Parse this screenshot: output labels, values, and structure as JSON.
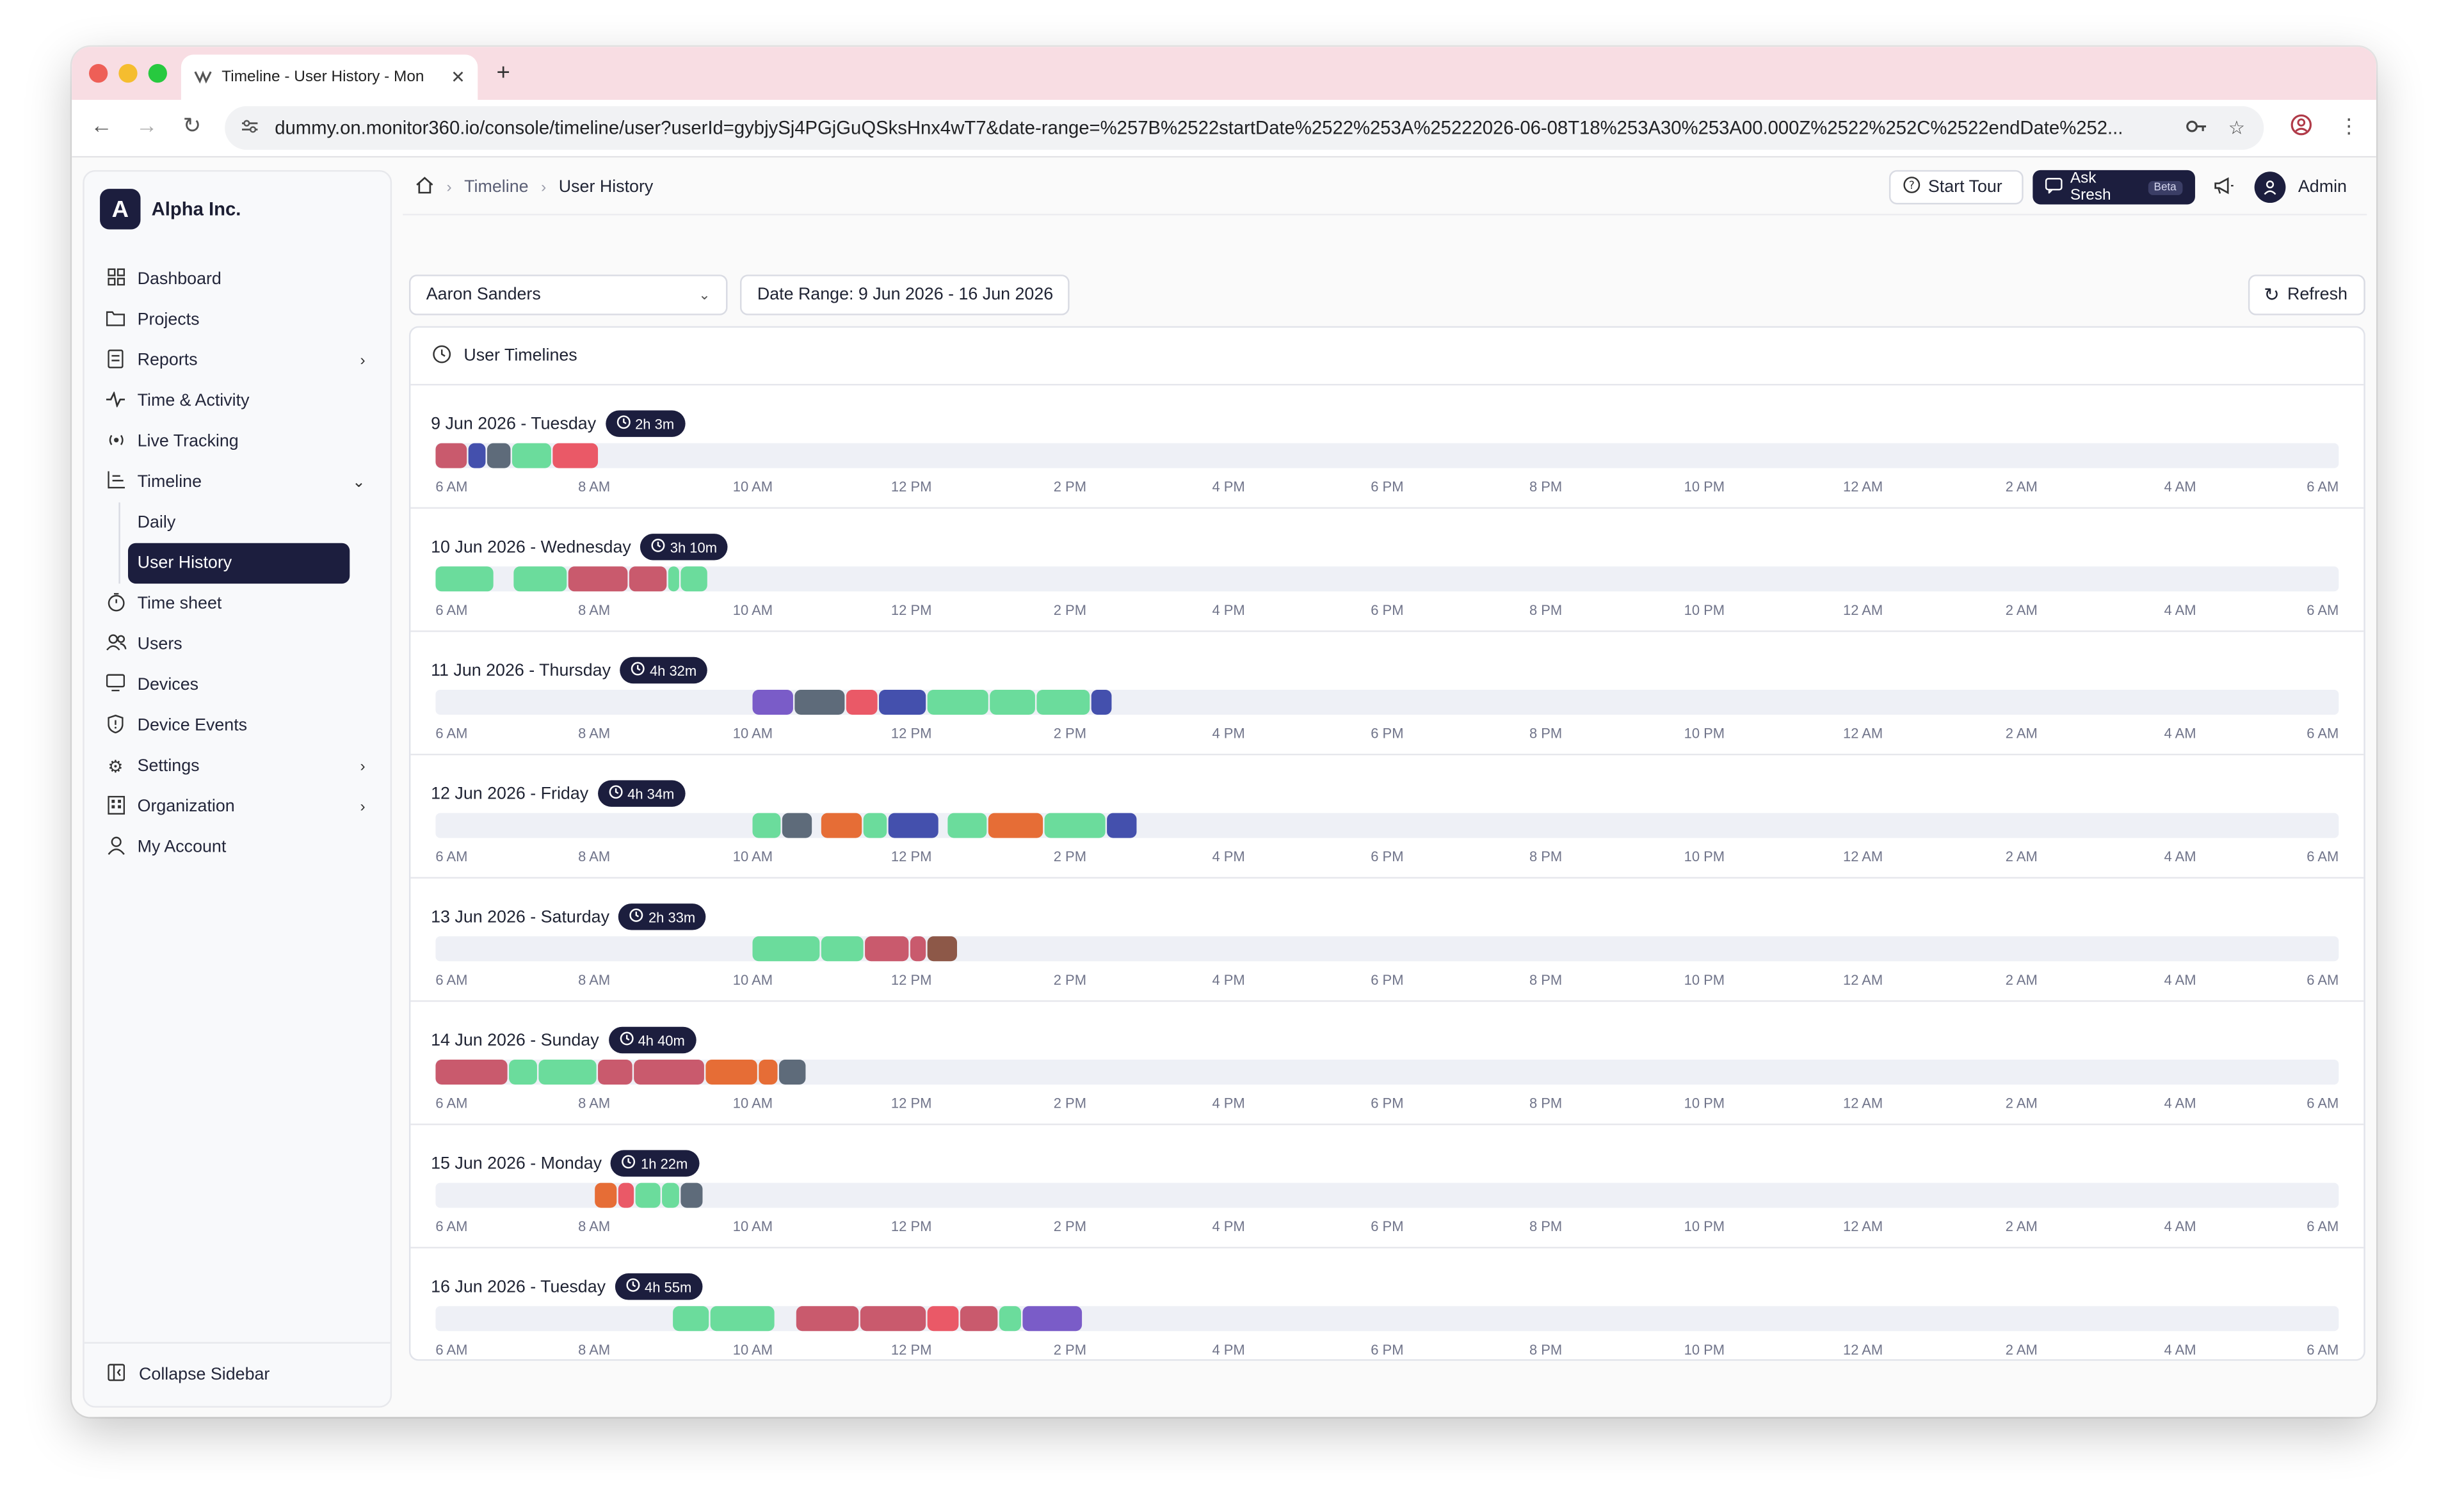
{
  "browser": {
    "tab_title": "Timeline - User History - Mon",
    "tab_close": "✕",
    "new_tab": "+",
    "url": "dummy.on.monitor360.io/console/timeline/user?userId=gybjySj4PGjGuQSksHnx4wT7&date-range=%257B%2522startDate%2522%253A%25222026-06-08T18%253A30%253A00.000Z%2522%252C%2522endDate%252..."
  },
  "sidebar": {
    "org_initial": "A",
    "org_name": "Alpha Inc.",
    "items": [
      {
        "label": "Dashboard",
        "icon": "dashboard-icon"
      },
      {
        "label": "Projects",
        "icon": "projects-icon"
      },
      {
        "label": "Reports",
        "icon": "reports-icon",
        "chevron": "›"
      },
      {
        "label": "Time & Activity",
        "icon": "activity-icon"
      },
      {
        "label": "Live Tracking",
        "icon": "live-tracking-icon"
      },
      {
        "label": "Timeline",
        "icon": "timeline-icon",
        "chevron": "⌄"
      },
      {
        "label": "Time sheet",
        "icon": "timesheet-icon"
      },
      {
        "label": "Users",
        "icon": "users-icon"
      },
      {
        "label": "Devices",
        "icon": "devices-icon"
      },
      {
        "label": "Device Events",
        "icon": "shield-icon"
      },
      {
        "label": "Settings",
        "icon": "gear-icon",
        "chevron": "›"
      },
      {
        "label": "Organization",
        "icon": "organization-icon",
        "chevron": "›"
      },
      {
        "label": "My Account",
        "icon": "user-icon"
      }
    ],
    "timeline_sub": [
      {
        "label": "Daily",
        "active": false
      },
      {
        "label": "User History",
        "active": true
      }
    ],
    "collapse_label": "Collapse Sidebar"
  },
  "header": {
    "breadcrumbs": [
      "Timeline",
      "User History"
    ],
    "start_tour": "Start Tour",
    "ask_sresh": "Ask Sresh",
    "beta": "Beta",
    "user_name": "Admin"
  },
  "filters": {
    "user_selected": "Aaron Sanders",
    "date_range": "Date Range: 9 Jun 2026 - 16 Jun 2026",
    "refresh": "Refresh"
  },
  "panel": {
    "title": "User Timelines"
  },
  "colors": {
    "green": "#6bdc9c",
    "rose": "#c95a6d",
    "red": "#ea5967",
    "indigo": "#4450ad",
    "slate": "#5e6b7a",
    "purple": "#7a5cc8",
    "orange": "#e66d36",
    "brown": "#8d5848",
    "navy": "#1c1e3e"
  },
  "timeline": {
    "range_start_hour": 6,
    "range_hours": 24,
    "tick_labels": [
      "6 AM",
      "8 AM",
      "10 AM",
      "12 PM",
      "2 PM",
      "4 PM",
      "6 PM",
      "8 PM",
      "10 PM",
      "12 AM",
      "2 AM",
      "4 AM",
      "6 AM"
    ],
    "days": [
      {
        "date": "9 Jun 2026 - Tuesday",
        "duration": "2h 3m",
        "segments": [
          {
            "start": 6.0,
            "end": 6.42,
            "color": "rose"
          },
          {
            "start": 6.42,
            "end": 6.65,
            "color": "indigo"
          },
          {
            "start": 6.65,
            "end": 6.97,
            "color": "slate"
          },
          {
            "start": 6.97,
            "end": 7.47,
            "color": "green"
          },
          {
            "start": 7.47,
            "end": 8.07,
            "color": "red"
          }
        ]
      },
      {
        "date": "10 Jun 2026 - Wednesday",
        "duration": "3h 10m",
        "segments": [
          {
            "start": 6.0,
            "end": 6.75,
            "color": "green"
          },
          {
            "start": 6.98,
            "end": 7.67,
            "color": "green"
          },
          {
            "start": 7.67,
            "end": 8.45,
            "color": "rose"
          },
          {
            "start": 8.45,
            "end": 8.93,
            "color": "rose"
          },
          {
            "start": 8.93,
            "end": 9.1,
            "color": "green"
          },
          {
            "start": 9.1,
            "end": 9.45,
            "color": "green"
          }
        ]
      },
      {
        "date": "11 Jun 2026 - Thursday",
        "duration": "4h 32m",
        "segments": [
          {
            "start": 10.0,
            "end": 10.52,
            "color": "purple"
          },
          {
            "start": 10.52,
            "end": 11.17,
            "color": "slate"
          },
          {
            "start": 11.17,
            "end": 11.6,
            "color": "red"
          },
          {
            "start": 11.6,
            "end": 12.2,
            "color": "indigo"
          },
          {
            "start": 12.2,
            "end": 12.98,
            "color": "green"
          },
          {
            "start": 12.98,
            "end": 13.58,
            "color": "green"
          },
          {
            "start": 13.58,
            "end": 14.27,
            "color": "green"
          },
          {
            "start": 14.27,
            "end": 14.55,
            "color": "indigo"
          }
        ]
      },
      {
        "date": "12 Jun 2026 - Friday",
        "duration": "4h 34m",
        "segments": [
          {
            "start": 10.0,
            "end": 10.37,
            "color": "green"
          },
          {
            "start": 10.37,
            "end": 10.77,
            "color": "slate"
          },
          {
            "start": 10.87,
            "end": 11.4,
            "color": "orange"
          },
          {
            "start": 11.4,
            "end": 11.7,
            "color": "green"
          },
          {
            "start": 11.7,
            "end": 12.35,
            "color": "indigo"
          },
          {
            "start": 12.45,
            "end": 12.97,
            "color": "green"
          },
          {
            "start": 12.97,
            "end": 13.68,
            "color": "orange"
          },
          {
            "start": 13.68,
            "end": 14.47,
            "color": "green"
          },
          {
            "start": 14.47,
            "end": 14.85,
            "color": "indigo"
          }
        ]
      },
      {
        "date": "13 Jun 2026 - Saturday",
        "duration": "2h 33m",
        "segments": [
          {
            "start": 10.0,
            "end": 10.87,
            "color": "green"
          },
          {
            "start": 10.87,
            "end": 11.42,
            "color": "green"
          },
          {
            "start": 11.42,
            "end": 11.98,
            "color": "rose"
          },
          {
            "start": 11.98,
            "end": 12.2,
            "color": "rose"
          },
          {
            "start": 12.2,
            "end": 12.6,
            "color": "brown"
          }
        ]
      },
      {
        "date": "14 Jun 2026 - Sunday",
        "duration": "4h 40m",
        "segments": [
          {
            "start": 6.0,
            "end": 6.92,
            "color": "rose"
          },
          {
            "start": 6.92,
            "end": 7.3,
            "color": "green"
          },
          {
            "start": 7.3,
            "end": 8.05,
            "color": "green"
          },
          {
            "start": 8.05,
            "end": 8.5,
            "color": "rose"
          },
          {
            "start": 8.5,
            "end": 9.4,
            "color": "rose"
          },
          {
            "start": 9.4,
            "end": 10.07,
            "color": "orange"
          },
          {
            "start": 10.07,
            "end": 10.33,
            "color": "orange"
          },
          {
            "start": 10.33,
            "end": 10.68,
            "color": "slate"
          }
        ]
      },
      {
        "date": "15 Jun 2026 - Monday",
        "duration": "1h 22m",
        "segments": [
          {
            "start": 8.0,
            "end": 8.3,
            "color": "orange"
          },
          {
            "start": 8.3,
            "end": 8.52,
            "color": "red"
          },
          {
            "start": 8.52,
            "end": 8.85,
            "color": "green"
          },
          {
            "start": 8.85,
            "end": 9.1,
            "color": "green"
          },
          {
            "start": 9.1,
            "end": 9.38,
            "color": "slate"
          }
        ]
      },
      {
        "date": "16 Jun 2026 - Tuesday",
        "duration": "4h 55m",
        "segments": [
          {
            "start": 9.0,
            "end": 9.47,
            "color": "green"
          },
          {
            "start": 9.47,
            "end": 10.3,
            "color": "green"
          },
          {
            "start": 10.55,
            "end": 11.35,
            "color": "rose"
          },
          {
            "start": 11.35,
            "end": 12.2,
            "color": "rose"
          },
          {
            "start": 12.2,
            "end": 12.62,
            "color": "red"
          },
          {
            "start": 12.62,
            "end": 13.1,
            "color": "rose"
          },
          {
            "start": 13.1,
            "end": 13.4,
            "color": "green"
          },
          {
            "start": 13.4,
            "end": 14.17,
            "color": "purple"
          }
        ]
      }
    ]
  }
}
